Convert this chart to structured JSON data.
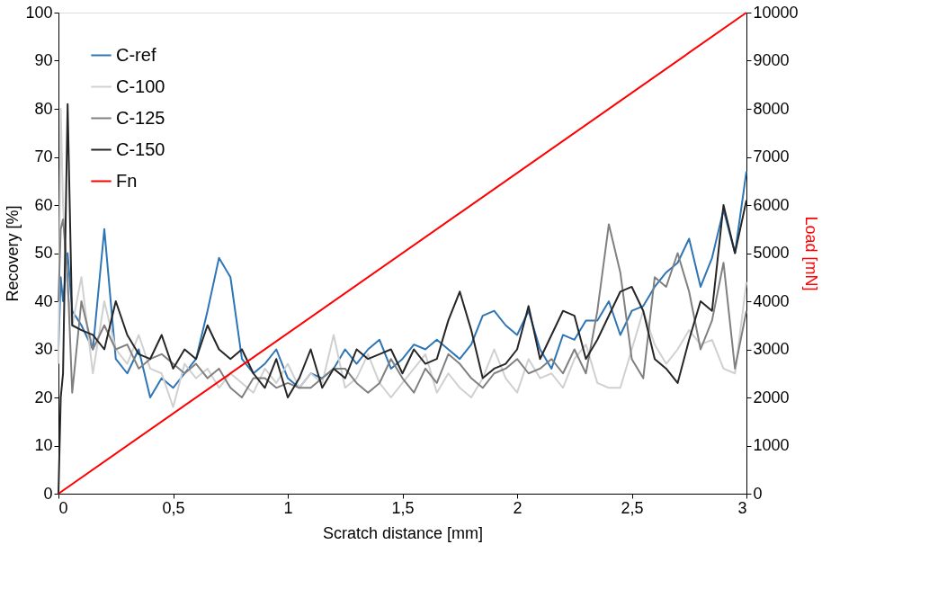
{
  "chart_data": {
    "type": "line",
    "xlabel": "Scratch distance [mm]",
    "ylabel": "Recovery [%]",
    "y2label": "Load [mN]",
    "x": [
      0,
      0.01,
      0.02,
      0.04,
      0.06,
      0.1,
      0.15,
      0.2,
      0.25,
      0.3,
      0.35,
      0.4,
      0.45,
      0.5,
      0.55,
      0.6,
      0.65,
      0.7,
      0.75,
      0.8,
      0.85,
      0.9,
      0.95,
      1.0,
      1.05,
      1.1,
      1.15,
      1.2,
      1.25,
      1.3,
      1.35,
      1.4,
      1.45,
      1.5,
      1.55,
      1.6,
      1.65,
      1.7,
      1.75,
      1.8,
      1.85,
      1.9,
      1.95,
      2.0,
      2.05,
      2.1,
      2.15,
      2.2,
      2.25,
      2.3,
      2.35,
      2.4,
      2.45,
      2.5,
      2.55,
      2.6,
      2.65,
      2.7,
      2.75,
      2.8,
      2.85,
      2.9,
      2.95,
      3.0
    ],
    "series": [
      {
        "name": "C-ref",
        "color": "#2e75b6",
        "values": [
          30,
          45,
          40,
          50,
          38,
          35,
          30,
          55,
          28,
          25,
          30,
          20,
          24,
          22,
          25,
          28,
          38,
          49,
          45,
          28,
          25,
          27,
          30,
          24,
          22,
          25,
          24,
          26,
          30,
          27,
          30,
          32,
          26,
          28,
          31,
          30,
          32,
          30,
          28,
          31,
          37,
          38,
          35,
          33,
          38,
          30,
          26,
          33,
          32,
          36,
          36,
          40,
          33,
          38,
          39,
          43,
          46,
          48,
          53,
          43,
          49,
          59,
          50,
          67
        ]
      },
      {
        "name": "C-100",
        "color": "#d0d0d0",
        "values": [
          27,
          80,
          60,
          42,
          35,
          45,
          25,
          40,
          30,
          27,
          33,
          26,
          25,
          18,
          27,
          24,
          26,
          22,
          25,
          23,
          21,
          26,
          23,
          27,
          22,
          25,
          23,
          33,
          22,
          24,
          29,
          23,
          20,
          23,
          26,
          29,
          21,
          25,
          22,
          20,
          24,
          30,
          24,
          21,
          28,
          24,
          25,
          22,
          28,
          31,
          23,
          22,
          22,
          30,
          38,
          31,
          27,
          30,
          34,
          31,
          32,
          26,
          25,
          44
        ]
      },
      {
        "name": "C-125",
        "color": "#808080",
        "values": [
          40,
          55,
          57,
          45,
          21,
          40,
          30,
          35,
          30,
          31,
          26,
          28,
          29,
          27,
          25,
          27,
          24,
          26,
          22,
          20,
          24,
          24,
          22,
          23,
          22,
          22,
          24,
          26,
          26,
          23,
          21,
          23,
          28,
          24,
          21,
          26,
          23,
          29,
          27,
          24,
          22,
          25,
          26,
          28,
          25,
          26,
          28,
          25,
          30,
          25,
          38,
          56,
          46,
          28,
          24,
          45,
          43,
          50,
          42,
          30,
          36,
          48,
          26,
          38
        ]
      },
      {
        "name": "C-150",
        "color": "#262626",
        "values": [
          0,
          20,
          25,
          81,
          35,
          34,
          33,
          30,
          40,
          33,
          29,
          28,
          33,
          26,
          30,
          28,
          35,
          30,
          28,
          30,
          25,
          22,
          28,
          20,
          24,
          30,
          22,
          26,
          24,
          30,
          28,
          29,
          30,
          25,
          30,
          27,
          28,
          36,
          42,
          34,
          24,
          26,
          27,
          30,
          39,
          28,
          33,
          38,
          37,
          28,
          32,
          37,
          42,
          43,
          38,
          28,
          26,
          23,
          32,
          40,
          38,
          60,
          50,
          61
        ]
      },
      {
        "name": "Fn",
        "color": "#ff0000",
        "axis": "y2",
        "x": [
          0,
          3
        ],
        "values": [
          0,
          10000
        ]
      }
    ],
    "xlim": [
      0,
      3
    ],
    "xticks": [
      0,
      {
        "value": 0.5,
        "label": "0,5"
      },
      1,
      {
        "value": 1.5,
        "label": "1,5"
      },
      2,
      {
        "value": 2.5,
        "label": "2,5"
      },
      3
    ],
    "ylim": [
      0,
      100
    ],
    "yticks": [
      0,
      10,
      20,
      30,
      40,
      50,
      60,
      70,
      80,
      90,
      100
    ],
    "y2lim": [
      0,
      10000
    ],
    "y2ticks": [
      0,
      1000,
      2000,
      3000,
      4000,
      5000,
      6000,
      7000,
      8000,
      9000,
      10000
    ],
    "grid": false,
    "legend": "top left",
    "marker": "none",
    "line_style": "solid"
  }
}
